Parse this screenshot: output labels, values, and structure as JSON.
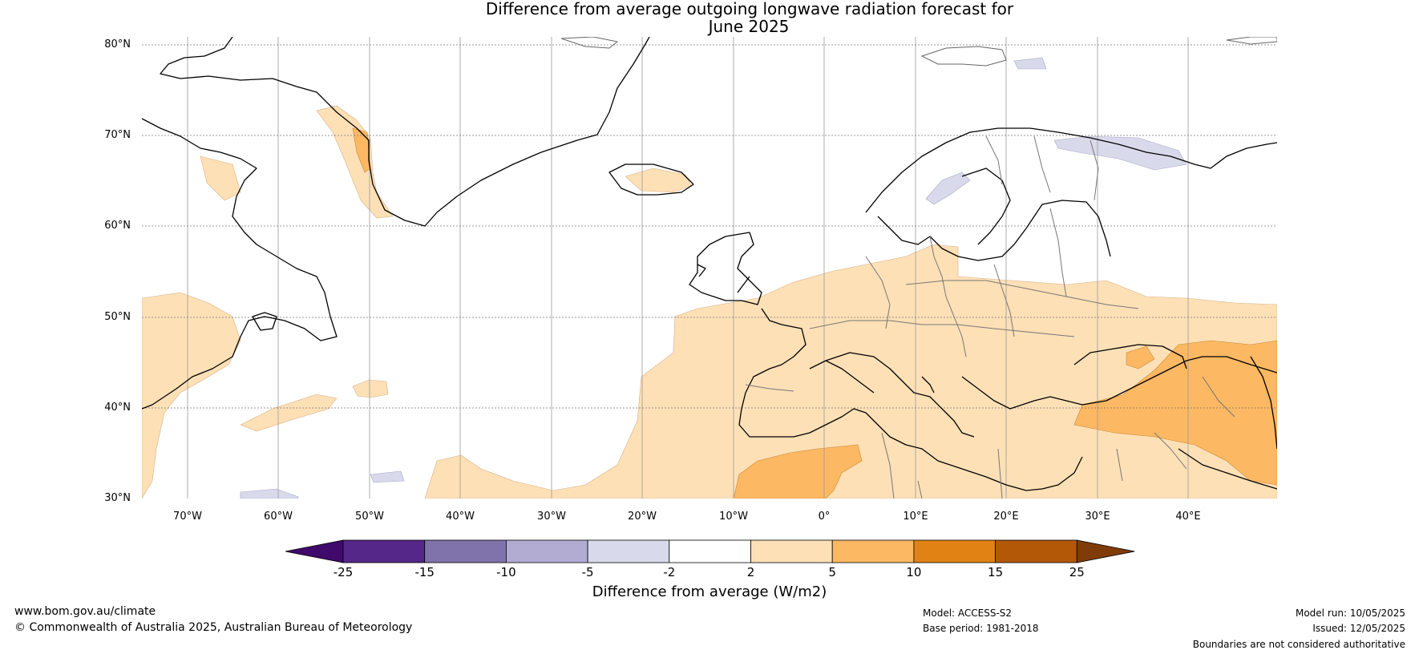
{
  "title_line1": "Difference from average outgoing longwave radiation forecast for",
  "title_line2": "June 2025",
  "lat_labels": [
    "80°N",
    "70°N",
    "60°N",
    "50°N",
    "40°N",
    "30°N"
  ],
  "lon_labels": [
    "70°W",
    "60°W",
    "50°W",
    "40°W",
    "30°W",
    "20°W",
    "10°W",
    "0°",
    "10°E",
    "20°E",
    "30°E",
    "40°E"
  ],
  "legend": {
    "label": "Difference from average (W/m2)",
    "ticks": [
      "-25",
      "-15",
      "-10",
      "-5",
      "-2",
      "2",
      "5",
      "10",
      "15",
      "25"
    ],
    "colors": [
      "#3f0a6b",
      "#542788",
      "#8073ac",
      "#b2abd2",
      "#d8daeb",
      "#ffffff",
      "#fee0b6",
      "#fdb863",
      "#e08214",
      "#b35806",
      "#7f3b08"
    ]
  },
  "footer": {
    "website": "www.bom.gov.au/climate",
    "copyright": "© Commonwealth of Australia 2025, Australian Bureau of Meteorology",
    "model": "Model: ACCESS-S2",
    "base_period": "Base period: 1981-2018",
    "model_run": "Model run: 10/05/2025",
    "issued": "Issued: 12/05/2025",
    "disclaimer": "Boundaries are not considered authoritative"
  }
}
